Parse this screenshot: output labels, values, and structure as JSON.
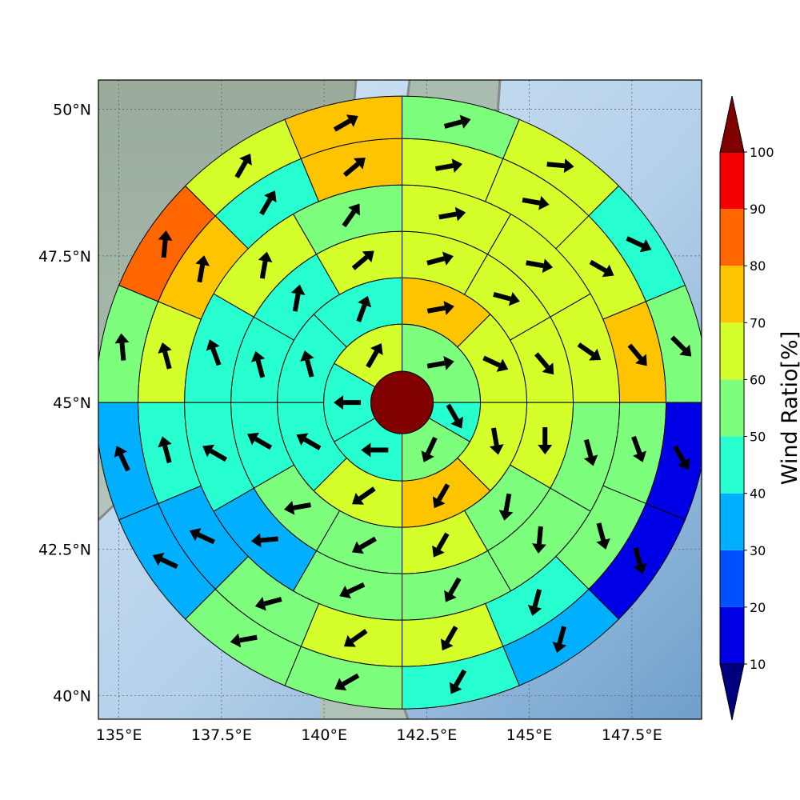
{
  "map": {
    "lon_range": [
      134.5,
      149.2
    ],
    "lat_range": [
      39.6,
      50.5
    ],
    "lon_ticks": [
      "135°E",
      "137.5°E",
      "140°E",
      "142.5°E",
      "145°E",
      "147.5°E"
    ],
    "lat_ticks": [
      "40°N",
      "42.5°N",
      "45°N",
      "47.5°N",
      "50°N"
    ],
    "gridlines": true,
    "center": {
      "lon": 141.9,
      "lat": 45.0
    },
    "center_color": "#800000"
  },
  "colorbar": {
    "title": "Wind Ratio[%]",
    "tick_labels": [
      "10",
      "20",
      "30",
      "40",
      "50",
      "60",
      "70",
      "80",
      "90",
      "100"
    ],
    "bins": [
      {
        "range": "<10",
        "color": "#00007f"
      },
      {
        "range": "10-20",
        "color": "#0000e6"
      },
      {
        "range": "20-30",
        "color": "#0050ff"
      },
      {
        "range": "30-40",
        "color": "#00b0ff"
      },
      {
        "range": "40-50",
        "color": "#28ffd0"
      },
      {
        "range": "50-60",
        "color": "#7dff7d"
      },
      {
        "range": "60-70",
        "color": "#d4ff2a"
      },
      {
        "range": "70-80",
        "color": "#ffc400"
      },
      {
        "range": "80-90",
        "color": "#ff6600"
      },
      {
        "range": "90-100",
        "color": "#f50000"
      },
      {
        "range": ">100",
        "color": "#800000"
      }
    ]
  },
  "chart_data": {
    "type": "heatmap",
    "description_units": "ring sectors around center; bearing in degrees clockwise from north, wind direction in degrees clockwise from north (direction arrow points to)",
    "rings": [
      {
        "ring": 1,
        "sectors": [
          {
            "from": 0,
            "to": 90,
            "ratio_bin": "50-60",
            "dir": 80
          },
          {
            "from": 90,
            "to": 120,
            "ratio_bin": "40-50",
            "dir": 150
          },
          {
            "from": 120,
            "to": 180,
            "ratio_bin": "50-60",
            "dir": 205
          },
          {
            "from": 180,
            "to": 240,
            "ratio_bin": "40-50",
            "dir": 270
          },
          {
            "from": 240,
            "to": 300,
            "ratio_bin": "40-50",
            "dir": 270
          },
          {
            "from": 300,
            "to": 360,
            "ratio_bin": "60-70",
            "dir": 30
          }
        ]
      },
      {
        "ring": 2,
        "sectors": [
          {
            "from": 0,
            "to": 45,
            "ratio_bin": "70-80",
            "dir": 80
          },
          {
            "from": 45,
            "to": 90,
            "ratio_bin": "60-70",
            "dir": 115
          },
          {
            "from": 90,
            "to": 135,
            "ratio_bin": "60-70",
            "dir": 170
          },
          {
            "from": 135,
            "to": 180,
            "ratio_bin": "70-80",
            "dir": 210
          },
          {
            "from": 180,
            "to": 225,
            "ratio_bin": "60-70",
            "dir": 235
          },
          {
            "from": 225,
            "to": 270,
            "ratio_bin": "40-50",
            "dir": 300
          },
          {
            "from": 270,
            "to": 315,
            "ratio_bin": "40-50",
            "dir": 345
          },
          {
            "from": 315,
            "to": 360,
            "ratio_bin": "40-50",
            "dir": 20
          }
        ]
      },
      {
        "ring": 3,
        "sectors": [
          {
            "from": 0,
            "to": 30,
            "ratio_bin": "60-70",
            "dir": 75
          },
          {
            "from": 30,
            "to": 60,
            "ratio_bin": "60-70",
            "dir": 105
          },
          {
            "from": 60,
            "to": 90,
            "ratio_bin": "60-70",
            "dir": 140
          },
          {
            "from": 90,
            "to": 120,
            "ratio_bin": "60-70",
            "dir": 180
          },
          {
            "from": 120,
            "to": 150,
            "ratio_bin": "50-60",
            "dir": 190
          },
          {
            "from": 150,
            "to": 180,
            "ratio_bin": "60-70",
            "dir": 210
          },
          {
            "from": 180,
            "to": 210,
            "ratio_bin": "50-60",
            "dir": 240
          },
          {
            "from": 210,
            "to": 240,
            "ratio_bin": "50-60",
            "dir": 260
          },
          {
            "from": 240,
            "to": 270,
            "ratio_bin": "40-50",
            "dir": 300
          },
          {
            "from": 270,
            "to": 300,
            "ratio_bin": "40-50",
            "dir": 345
          },
          {
            "from": 300,
            "to": 330,
            "ratio_bin": "40-50",
            "dir": 10
          },
          {
            "from": 330,
            "to": 360,
            "ratio_bin": "60-70",
            "dir": 50
          }
        ]
      },
      {
        "ring": 4,
        "sectors": [
          {
            "from": 0,
            "to": 30,
            "ratio_bin": "60-70",
            "dir": 80
          },
          {
            "from": 30,
            "to": 60,
            "ratio_bin": "60-70",
            "dir": 100
          },
          {
            "from": 60,
            "to": 90,
            "ratio_bin": "60-70",
            "dir": 125
          },
          {
            "from": 90,
            "to": 120,
            "ratio_bin": "50-60",
            "dir": 165
          },
          {
            "from": 120,
            "to": 150,
            "ratio_bin": "50-60",
            "dir": 185
          },
          {
            "from": 150,
            "to": 180,
            "ratio_bin": "50-60",
            "dir": 210
          },
          {
            "from": 180,
            "to": 210,
            "ratio_bin": "50-60",
            "dir": 245
          },
          {
            "from": 210,
            "to": 240,
            "ratio_bin": "30-40",
            "dir": 265
          },
          {
            "from": 240,
            "to": 270,
            "ratio_bin": "40-50",
            "dir": 300
          },
          {
            "from": 270,
            "to": 300,
            "ratio_bin": "40-50",
            "dir": 340
          },
          {
            "from": 300,
            "to": 330,
            "ratio_bin": "60-70",
            "dir": 10
          },
          {
            "from": 330,
            "to": 360,
            "ratio_bin": "50-60",
            "dir": 35
          }
        ]
      },
      {
        "ring": 5,
        "sectors": [
          {
            "from": 0,
            "to": 22.5,
            "ratio_bin": "60-70",
            "dir": 80
          },
          {
            "from": 22.5,
            "to": 45,
            "ratio_bin": "60-70",
            "dir": 100
          },
          {
            "from": 45,
            "to": 67.5,
            "ratio_bin": "60-70",
            "dir": 120
          },
          {
            "from": 67.5,
            "to": 90,
            "ratio_bin": "70-80",
            "dir": 140
          },
          {
            "from": 90,
            "to": 112.5,
            "ratio_bin": "50-60",
            "dir": 160
          },
          {
            "from": 112.5,
            "to": 135,
            "ratio_bin": "50-60",
            "dir": 165
          },
          {
            "from": 135,
            "to": 157.5,
            "ratio_bin": "40-50",
            "dir": 195
          },
          {
            "from": 157.5,
            "to": 180,
            "ratio_bin": "60-70",
            "dir": 210
          },
          {
            "from": 180,
            "to": 202.5,
            "ratio_bin": "60-70",
            "dir": 235
          },
          {
            "from": 202.5,
            "to": 225,
            "ratio_bin": "50-60",
            "dir": 255
          },
          {
            "from": 225,
            "to": 247.5,
            "ratio_bin": "30-40",
            "dir": 295
          },
          {
            "from": 247.5,
            "to": 270,
            "ratio_bin": "40-50",
            "dir": 345
          },
          {
            "from": 270,
            "to": 292.5,
            "ratio_bin": "60-70",
            "dir": 345
          },
          {
            "from": 292.5,
            "to": 315,
            "ratio_bin": "70-80",
            "dir": 10
          },
          {
            "from": 315,
            "to": 337.5,
            "ratio_bin": "40-50",
            "dir": 30
          },
          {
            "from": 337.5,
            "to": 360,
            "ratio_bin": "70-80",
            "dir": 50
          }
        ]
      },
      {
        "ring": 6,
        "sectors": [
          {
            "from": 0,
            "to": 22.5,
            "ratio_bin": "50-60",
            "dir": 75
          },
          {
            "from": 22.5,
            "to": 45,
            "ratio_bin": "60-70",
            "dir": 95
          },
          {
            "from": 45,
            "to": 67.5,
            "ratio_bin": "40-50",
            "dir": 115
          },
          {
            "from": 67.5,
            "to": 90,
            "ratio_bin": "50-60",
            "dir": 135
          },
          {
            "from": 90,
            "to": 112.5,
            "ratio_bin": "10-20",
            "dir": 150
          },
          {
            "from": 112.5,
            "to": 135,
            "ratio_bin": "10-20",
            "dir": 165
          },
          {
            "from": 135,
            "to": 157.5,
            "ratio_bin": "30-40",
            "dir": 195
          },
          {
            "from": 157.5,
            "to": 180,
            "ratio_bin": "40-50",
            "dir": 210
          },
          {
            "from": 180,
            "to": 202.5,
            "ratio_bin": "50-60",
            "dir": 240
          },
          {
            "from": 202.5,
            "to": 225,
            "ratio_bin": "50-60",
            "dir": 260
          },
          {
            "from": 225,
            "to": 247.5,
            "ratio_bin": "30-40",
            "dir": 295
          },
          {
            "from": 247.5,
            "to": 270,
            "ratio_bin": "30-40",
            "dir": 335
          },
          {
            "from": 270,
            "to": 292.5,
            "ratio_bin": "50-60",
            "dir": 355
          },
          {
            "from": 292.5,
            "to": 315,
            "ratio_bin": "80-90",
            "dir": 5
          },
          {
            "from": 315,
            "to": 337.5,
            "ratio_bin": "60-70",
            "dir": 30
          },
          {
            "from": 337.5,
            "to": 360,
            "ratio_bin": "70-80",
            "dir": 60
          }
        ]
      }
    ]
  }
}
